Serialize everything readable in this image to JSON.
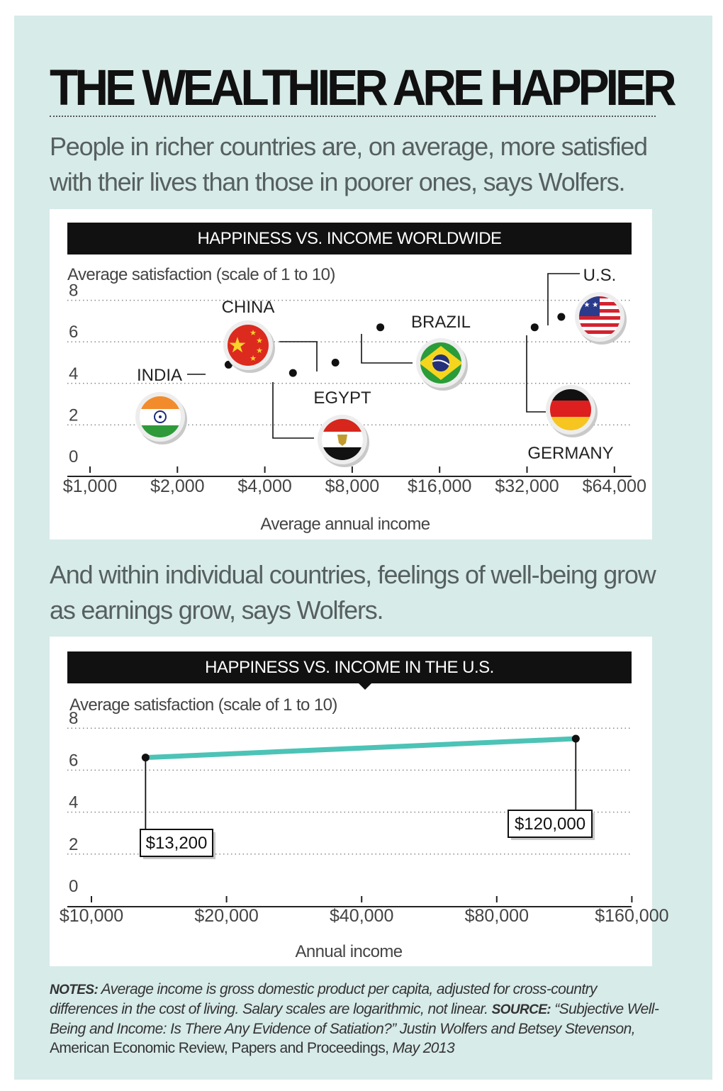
{
  "header": {
    "title": "THE WEALTHIER ARE HAPPIER",
    "intro1": "People in richer countries are, on average, more satisfied with their lives than those in poorer ones, says Wolfers.",
    "intro2": "And within individual countries, feelings of well-being grow as earnings grow, says Wolfers."
  },
  "colors": {
    "panel": "#d7ebe9",
    "line": "#4cc3b6",
    "bar": "#111111"
  },
  "chart_data": [
    {
      "type": "scatter",
      "title": "HAPPINESS VS. INCOME WORLDWIDE",
      "ylabel": "Average satisfaction (scale of 1 to 10)",
      "xlabel": "Average annual income",
      "xscale": "log2",
      "xlim": [
        1000,
        70000
      ],
      "ylim": [
        0,
        8
      ],
      "x_ticks": [
        1000,
        2000,
        4000,
        8000,
        16000,
        32000,
        64000
      ],
      "x_tick_labels": [
        "$1,000",
        "$2,000",
        "$4,000",
        "$8,000",
        "$16,000",
        "$32,000",
        "$64,000"
      ],
      "y_ticks": [
        0,
        2,
        4,
        6,
        8
      ],
      "y_tick_labels": [
        "0",
        "2",
        "4",
        "6",
        "8"
      ],
      "grid": true,
      "points": [
        {
          "name": "INDIA",
          "flag": "india-flag-icon",
          "x": 3000,
          "y": 4.9
        },
        {
          "name": "CHINA",
          "flag": "china-flag-icon",
          "x": 7000,
          "y": 5.0
        },
        {
          "name": "EGYPT",
          "flag": "egypt-flag-icon",
          "x": 5000,
          "y": 4.5
        },
        {
          "name": "BRAZIL",
          "flag": "brazil-flag-icon",
          "x": 10000,
          "y": 6.7
        },
        {
          "name": "GERMANY",
          "flag": "germany-flag-icon",
          "x": 34000,
          "y": 6.7
        },
        {
          "name": "U.S.",
          "flag": "us-flag-icon",
          "x": 42000,
          "y": 7.2
        }
      ]
    },
    {
      "type": "line",
      "title": "HAPPINESS VS. INCOME IN THE U.S.",
      "ylabel": "Average satisfaction (scale of 1 to 10)",
      "xlabel": "Annual income",
      "xscale": "log2",
      "xlim": [
        10000,
        180000
      ],
      "ylim": [
        0,
        8
      ],
      "x_ticks": [
        10000,
        20000,
        40000,
        80000,
        160000
      ],
      "x_tick_labels": [
        "$10,000",
        "$20,000",
        "$40,000",
        "$80,000",
        "$160,000"
      ],
      "y_ticks": [
        0,
        2,
        4,
        6,
        8
      ],
      "y_tick_labels": [
        "0",
        "2",
        "4",
        "6",
        "8"
      ],
      "grid": true,
      "series": [
        {
          "name": "U.S.",
          "x": [
            13200,
            120000
          ],
          "y": [
            6.6,
            7.5
          ]
        }
      ],
      "annotations": [
        {
          "label": "$13,200",
          "x": 13200
        },
        {
          "label": "$120,000",
          "x": 120000
        }
      ]
    }
  ],
  "notes": {
    "notes_label": "NOTES:",
    "notes_text": "Average income is gross domestic product per capita, adjusted for cross-country differences in the cost of living. Salary scales are logarithmic, not linear.",
    "source_label": "SOURCE:",
    "source_title": "“Subjective Well-Being and Income: Is There Any Evidence of Satiation?” Justin Wolfers and Betsey Stevenson,",
    "source_journal": "American Economic Review, Papers and Proceedings,",
    "source_date": "May 2013"
  }
}
